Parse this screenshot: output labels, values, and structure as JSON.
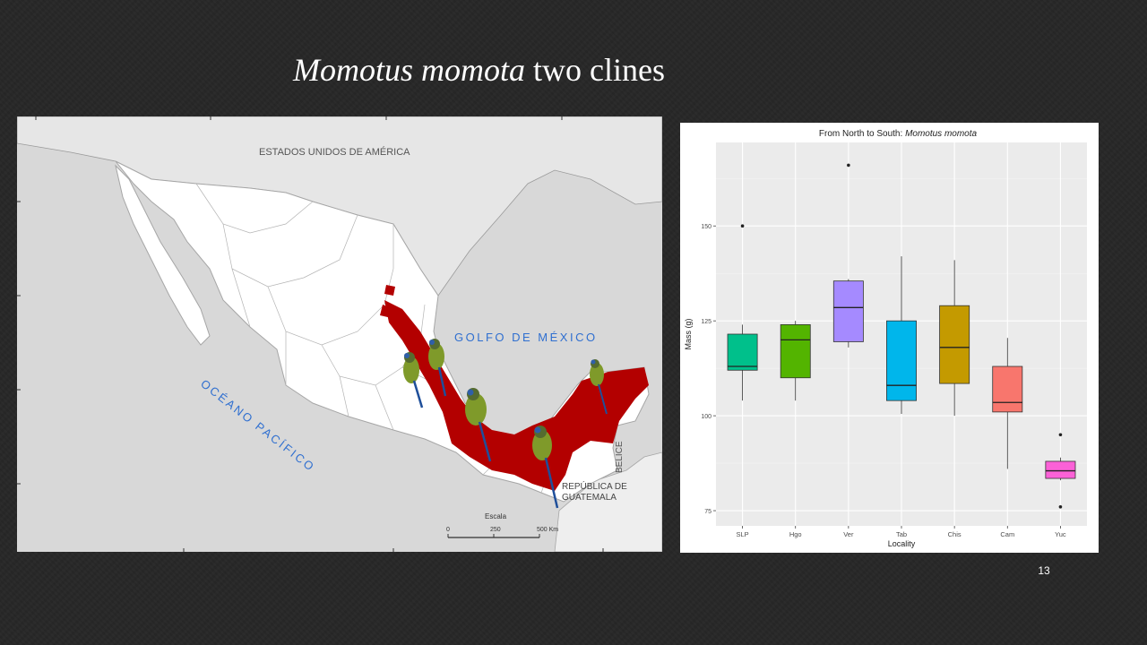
{
  "slide": {
    "title_italic": "Momotus momota",
    "title_rest": " two clines",
    "page_number": "13"
  },
  "map": {
    "labels": {
      "usa": "ESTADOS UNIDOS DE AMÉRICA",
      "gulf": "GOLFO DE MÉXICO",
      "pacific": "OCÉANO PACÍFICO",
      "belize": "BELICE",
      "guatemala_line1": "REPÚBLICA DE",
      "guatemala_line2": "GUATEMALA",
      "scale_title": "Escala",
      "scale_0": "0",
      "scale_250": "250",
      "scale_500": "500 Km"
    },
    "colors": {
      "range": "#b30000",
      "land": "#ffffff",
      "sea": "#d8d8d8",
      "label_blue": "#2f6fd0"
    }
  },
  "chart_data": {
    "type": "boxplot",
    "title_prefix": "From North to South: ",
    "title_italic": "Momotus momota",
    "xlabel": "Locality",
    "ylabel": "Mass (g)",
    "ylim": [
      71,
      172
    ],
    "yticks": [
      75,
      100,
      125,
      150
    ],
    "grid": true,
    "legend": "none",
    "categories": [
      "SLP",
      "Hgo",
      "Ver",
      "Tab",
      "Chis",
      "Cam",
      "Yuc"
    ],
    "boxes": [
      {
        "category": "SLP",
        "min": 104,
        "q1": 112,
        "median": 113,
        "q3": 121.5,
        "max": 124,
        "outliers": [
          150
        ],
        "color": "#00c08b"
      },
      {
        "category": "Hgo",
        "min": 104,
        "q1": 110,
        "median": 120,
        "q3": 124,
        "max": 125,
        "outliers": [],
        "color": "#53b400"
      },
      {
        "category": "Ver",
        "min": 118,
        "q1": 119.5,
        "median": 128.5,
        "q3": 135.5,
        "max": 136,
        "outliers": [
          166
        ],
        "color": "#a58aff"
      },
      {
        "category": "Tab",
        "min": 100.5,
        "q1": 104,
        "median": 108,
        "q3": 125,
        "max": 142,
        "outliers": [],
        "color": "#00b6eb"
      },
      {
        "category": "Chis",
        "min": 100,
        "q1": 108.5,
        "median": 118,
        "q3": 129,
        "max": 141,
        "outliers": [],
        "color": "#c49a00"
      },
      {
        "category": "Cam",
        "min": 86,
        "q1": 101,
        "median": 103.5,
        "q3": 113,
        "max": 120.5,
        "outliers": [],
        "color": "#f8766d"
      },
      {
        "category": "Yuc",
        "min": 83,
        "q1": 83.5,
        "median": 85.5,
        "q3": 88,
        "max": 89,
        "outliers": [
          95,
          76
        ],
        "color": "#fb61d7"
      }
    ]
  }
}
